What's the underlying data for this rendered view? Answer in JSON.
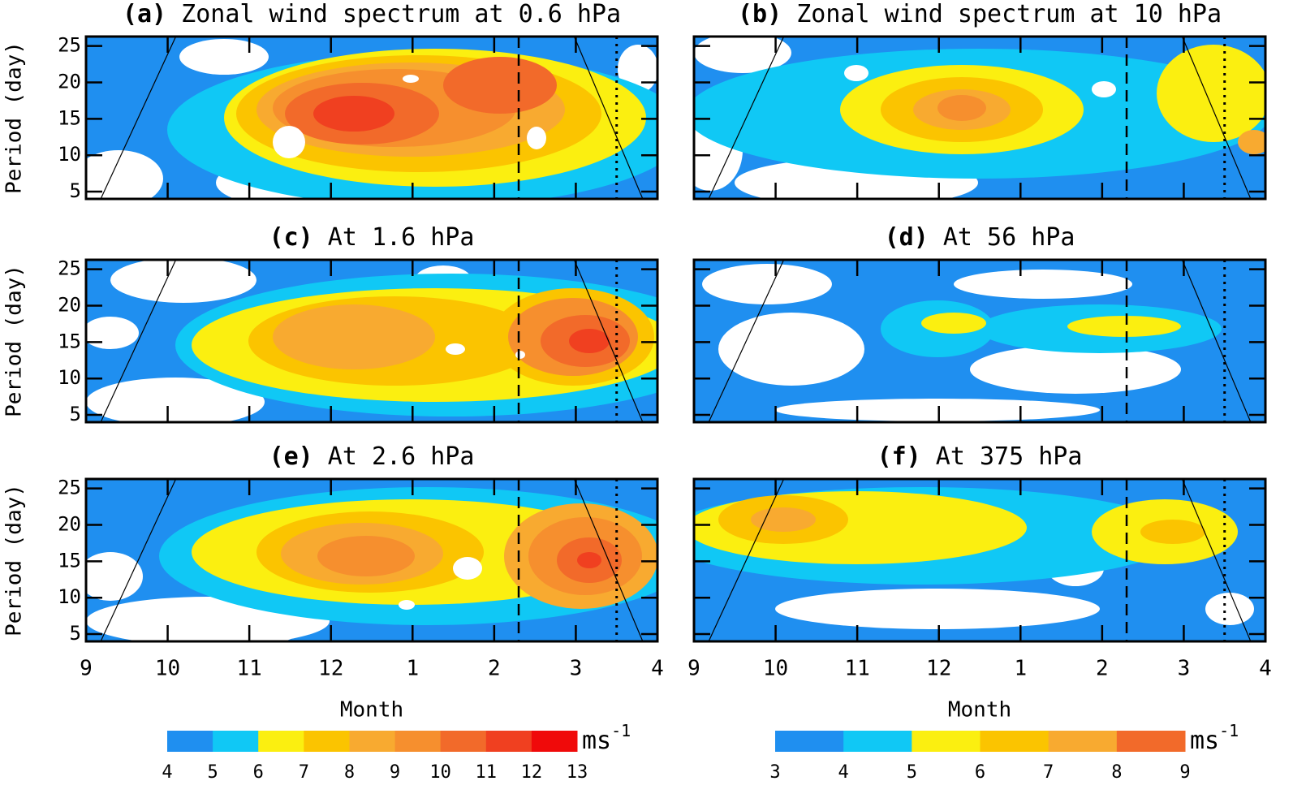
{
  "chart_data": [
    {
      "type": "contour",
      "label": "(a)",
      "title": "Zonal wind spectrum at 0.6 hPa",
      "ylabel": "Period (day)",
      "xlim": [
        0,
        7
      ],
      "xticks": [
        0,
        1,
        2,
        3,
        4,
        5,
        6,
        7
      ],
      "ylim": [
        4,
        26.3
      ],
      "yticks": [
        5,
        10,
        15,
        20,
        25
      ],
      "dashed_x": 5.3,
      "dotted_x": 6.5,
      "lines": [
        {
          "x": [
            0.18,
            1.1
          ],
          "y": [
            4,
            26.3
          ]
        },
        {
          "x": [
            5.98,
            6.82
          ],
          "y": [
            26.3,
            4
          ]
        }
      ]
    },
    {
      "type": "contour",
      "label": "(b)",
      "title": "Zonal wind spectrum at 10 hPa",
      "ytick_labels": false,
      "xlim": [
        0,
        7
      ],
      "xticks": [
        0,
        1,
        2,
        3,
        4,
        5,
        6,
        7
      ],
      "ylim": [
        4,
        26.3
      ],
      "yticks": [
        5,
        10,
        15,
        20,
        25
      ],
      "dashed_x": 5.3,
      "dotted_x": 6.5,
      "lines": [
        {
          "x": [
            0.18,
            1.1
          ],
          "y": [
            4,
            26.3
          ]
        },
        {
          "x": [
            5.98,
            6.82
          ],
          "y": [
            26.3,
            4
          ]
        }
      ]
    },
    {
      "type": "contour",
      "label": "(c)",
      "title": "At 1.6 hPa",
      "ylabel": "Period (day)",
      "xlim": [
        0,
        7
      ],
      "xticks": [
        0,
        1,
        2,
        3,
        4,
        5,
        6,
        7
      ],
      "ylim": [
        4,
        26.3
      ],
      "yticks": [
        5,
        10,
        15,
        20,
        25
      ],
      "dashed_x": 5.3,
      "dotted_x": 6.5,
      "lines": [
        {
          "x": [
            0.18,
            1.1
          ],
          "y": [
            4,
            26.3
          ]
        },
        {
          "x": [
            5.98,
            6.82
          ],
          "y": [
            26.3,
            4
          ]
        }
      ]
    },
    {
      "type": "contour",
      "label": "(d)",
      "title": "At 56 hPa",
      "ytick_labels": false,
      "xlim": [
        0,
        7
      ],
      "xticks": [
        0,
        1,
        2,
        3,
        4,
        5,
        6,
        7
      ],
      "ylim": [
        4,
        26.3
      ],
      "yticks": [
        5,
        10,
        15,
        20,
        25
      ],
      "dashed_x": 5.3,
      "dotted_x": 6.5,
      "lines": [
        {
          "x": [
            0.18,
            1.1
          ],
          "y": [
            4,
            26.3
          ]
        },
        {
          "x": [
            5.98,
            6.82
          ],
          "y": [
            26.3,
            4
          ]
        }
      ]
    },
    {
      "type": "contour",
      "label": "(e)",
      "title": "At 2.6 hPa",
      "ylabel": "Period (day)",
      "xlabel": "Month",
      "xlim": [
        0,
        7
      ],
      "xticks": [
        {
          "value": 0,
          "label": "9"
        },
        {
          "value": 1,
          "label": "10"
        },
        {
          "value": 2,
          "label": "11"
        },
        {
          "value": 3,
          "label": "12"
        },
        {
          "value": 4,
          "label": "1"
        },
        {
          "value": 5,
          "label": "2"
        },
        {
          "value": 6,
          "label": "3"
        },
        {
          "value": 7,
          "label": "4"
        }
      ],
      "ylim": [
        4,
        26.3
      ],
      "yticks": [
        5,
        10,
        15,
        20,
        25
      ],
      "dashed_x": 5.3,
      "dotted_x": 6.5,
      "lines": [
        {
          "x": [
            0.18,
            1.1
          ],
          "y": [
            4,
            26.3
          ]
        },
        {
          "x": [
            5.98,
            6.82
          ],
          "y": [
            26.3,
            4
          ]
        }
      ],
      "colorbar": {
        "levels": [
          4,
          5,
          6,
          7,
          8,
          9,
          10,
          11,
          12,
          13
        ],
        "colors": [
          "#1f8ff0",
          "#10c8f5",
          "#fbef10",
          "#fbc400",
          "#f8aa30",
          "#f68f2e",
          "#f26a2a",
          "#f04020",
          "#f00a0a"
        ],
        "unit": "ms",
        "unit_exp": "-1"
      }
    },
    {
      "type": "contour",
      "label": "(f)",
      "title": "At 375 hPa",
      "ytick_labels": false,
      "xlabel": "Month",
      "xlim": [
        0,
        7
      ],
      "xticks": [
        {
          "value": 0,
          "label": "9"
        },
        {
          "value": 1,
          "label": "10"
        },
        {
          "value": 2,
          "label": "11"
        },
        {
          "value": 3,
          "label": "12"
        },
        {
          "value": 4,
          "label": "1"
        },
        {
          "value": 5,
          "label": "2"
        },
        {
          "value": 6,
          "label": "3"
        },
        {
          "value": 7,
          "label": "4"
        }
      ],
      "ylim": [
        4,
        26.3
      ],
      "yticks": [
        5,
        10,
        15,
        20,
        25
      ],
      "dashed_x": 5.3,
      "dotted_x": 6.5,
      "lines": [
        {
          "x": [
            0.18,
            1.1
          ],
          "y": [
            4,
            26.3
          ]
        },
        {
          "x": [
            5.98,
            6.82
          ],
          "y": [
            26.3,
            4
          ]
        }
      ],
      "colorbar": {
        "levels": [
          3,
          4,
          5,
          6,
          7,
          8,
          9
        ],
        "colors": [
          "#1f8ff0",
          "#10c8f5",
          "#fbef10",
          "#fbc400",
          "#f8aa30",
          "#f26a2a"
        ],
        "unit": "ms",
        "unit_exp": "-1"
      }
    }
  ]
}
